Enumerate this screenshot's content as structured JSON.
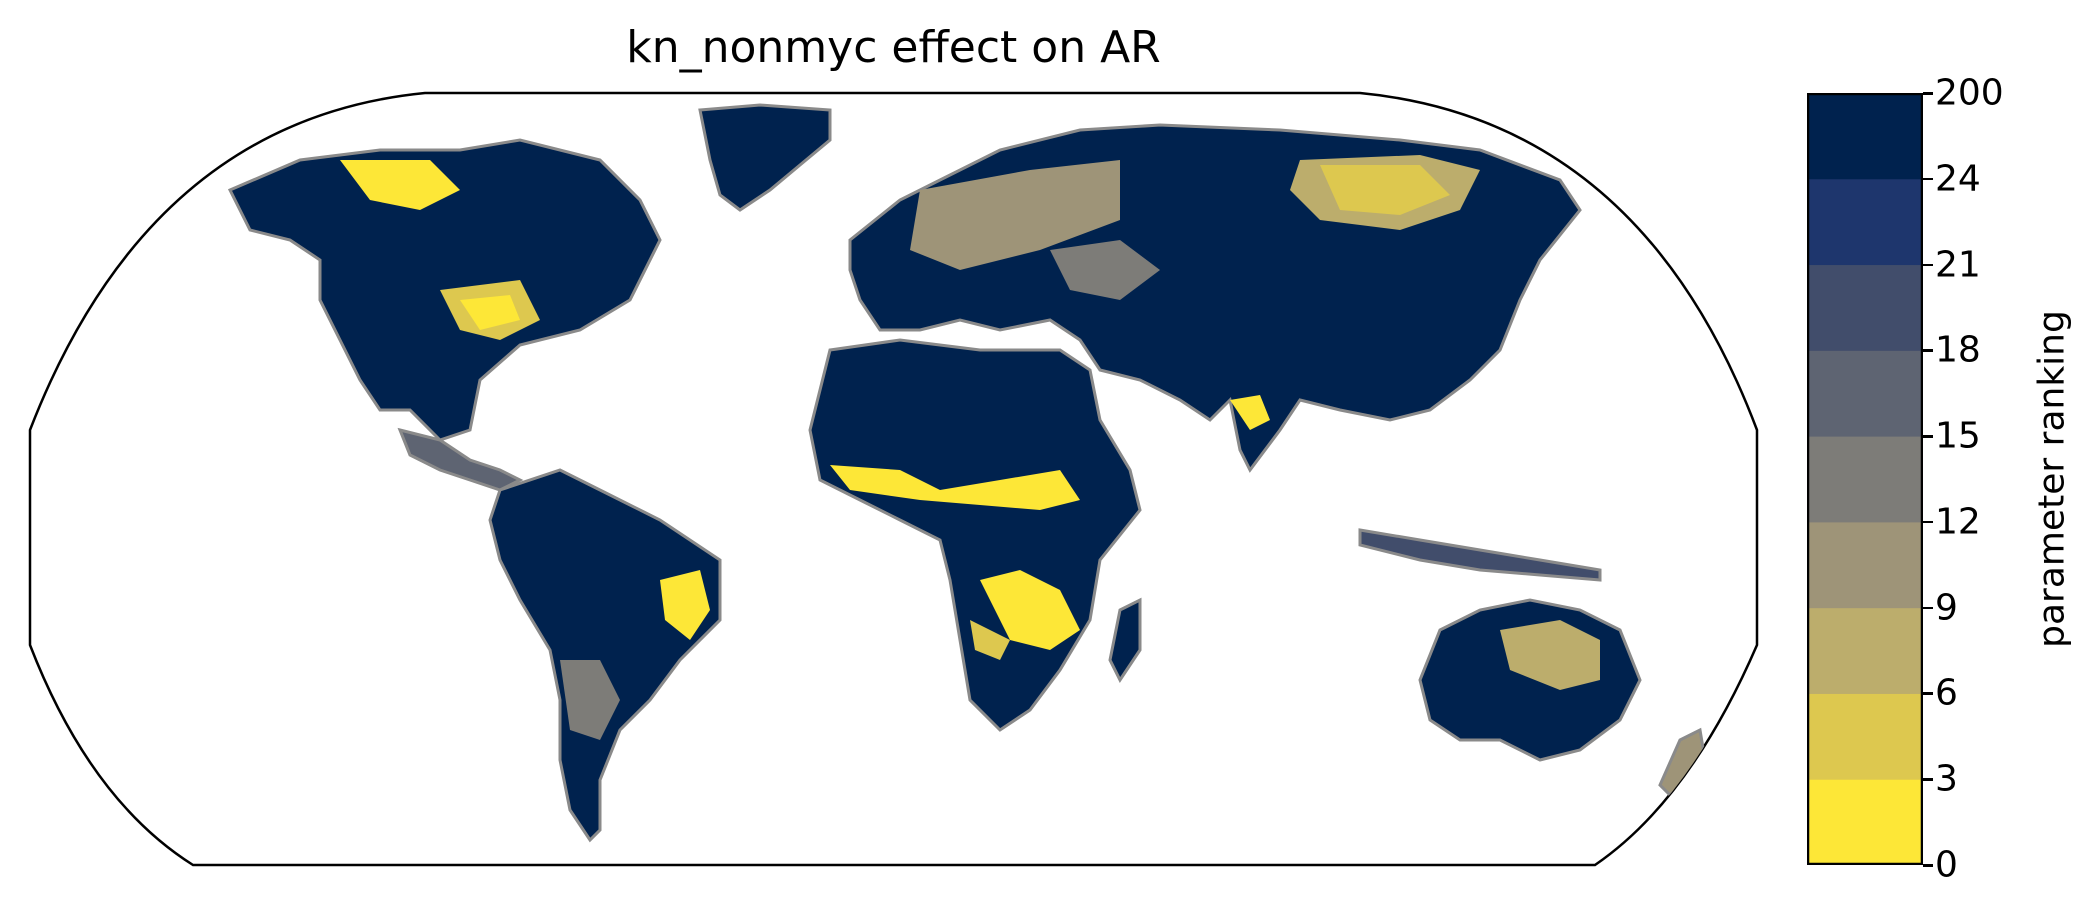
{
  "title": "kn_nonmyc effect on AR",
  "colorbar": {
    "label": "parameter ranking",
    "ticks": [
      "0",
      "3",
      "6",
      "9",
      "12",
      "15",
      "18",
      "21",
      "24",
      "200"
    ],
    "bins": [
      {
        "from": 0,
        "to": 3,
        "color": "#fde737"
      },
      {
        "from": 3,
        "to": 6,
        "color": "#ddc84f"
      },
      {
        "from": 6,
        "to": 9,
        "color": "#bcad6c"
      },
      {
        "from": 9,
        "to": 12,
        "color": "#9e9478"
      },
      {
        "from": 12,
        "to": 15,
        "color": "#7d7c78"
      },
      {
        "from": 15,
        "to": 18,
        "color": "#5e6472"
      },
      {
        "from": 18,
        "to": 21,
        "color": "#414d6b"
      },
      {
        "from": 21,
        "to": 24,
        "color": "#1e366d"
      },
      {
        "from": 24,
        "to": 200,
        "color": "#00224e"
      }
    ]
  },
  "projection": "robinson",
  "coastline_color": "#8a8a8a"
}
